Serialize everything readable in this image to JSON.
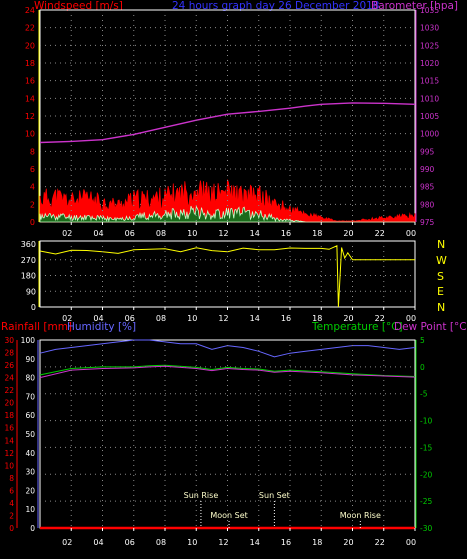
{
  "header": {
    "left": "Windspeed [m/s]",
    "center": "24 hours graph day  26 December 2018",
    "right": "Barometer [hpa]"
  },
  "middle": {
    "directions": [
      "N",
      "W",
      "S",
      "E",
      "N"
    ]
  },
  "bottom_header": {
    "rainfall": "Rainfall [mm]",
    "humidity": "Humidity [%]",
    "temperature": "Temperature [°C]",
    "dewpoint": "Dew Point [°C]"
  },
  "events": {
    "sun_rise": "Sun Rise",
    "sun_set": "Sun Set",
    "moon_set": "Moon Set",
    "moon_rise": "Moon Rise"
  },
  "colors": {
    "wind_gust": "#ff0000",
    "wind_avg": "#c8ffc8",
    "barometer": "#cc33cc",
    "direction": "#ffff00",
    "humidity": "#6666ff",
    "temperature": "#00cc00",
    "dewpoint": "#cc33cc",
    "rain": "#ff0000",
    "axis_yellow": "#ffff00",
    "grid": "#888888"
  },
  "chart_data": [
    {
      "type": "line",
      "title": "24 hours graph day  26 December 2018",
      "x_ticks": [
        "02",
        "04",
        "06",
        "08",
        "10",
        "12",
        "14",
        "16",
        "18",
        "20",
        "22",
        "00"
      ],
      "y_left_label": "Windspeed [m/s]",
      "y_left_ticks": [
        0,
        2,
        4,
        6,
        8,
        10,
        12,
        14,
        16,
        18,
        20,
        22,
        24
      ],
      "y_left_range": [
        0,
        24
      ],
      "y_right_label": "Barometer [hpa]",
      "y_right_ticks": [
        975,
        980,
        985,
        990,
        995,
        1000,
        1005,
        1010,
        1015,
        1020,
        1025,
        1030,
        1035
      ],
      "y_right_range": [
        975,
        1035
      ],
      "series": [
        {
          "name": "Barometer",
          "axis": "right",
          "x": [
            0,
            2,
            4,
            6,
            8,
            10,
            12,
            14,
            16,
            17,
            18,
            20,
            22,
            24
          ],
          "values": [
            997.5,
            997.8,
            998.3,
            999.8,
            1001.8,
            1003.8,
            1005.5,
            1006.3,
            1007.2,
            1007.8,
            1008.3,
            1008.7,
            1008.6,
            1008.3
          ]
        },
        {
          "name": "Wind gust",
          "axis": "left",
          "x": [
            0,
            1,
            2,
            3,
            4,
            5,
            6,
            7,
            8,
            9,
            10,
            11,
            12,
            13,
            14,
            15,
            16,
            17,
            18,
            19,
            20,
            21,
            22,
            23,
            24
          ],
          "values": [
            2.6,
            2.8,
            2.4,
            2.6,
            2.2,
            1.9,
            2.5,
            2.6,
            2.8,
            3.2,
            3.6,
            3.0,
            3.4,
            2.8,
            3.0,
            2.0,
            1.4,
            0.9,
            0.5,
            0.1,
            0.1,
            0.3,
            0.5,
            0.6,
            0.7
          ]
        },
        {
          "name": "Wind average",
          "axis": "left",
          "x": [
            0,
            1,
            2,
            3,
            4,
            5,
            6,
            7,
            8,
            9,
            10,
            11,
            12,
            13,
            14,
            15,
            16,
            17,
            18,
            19,
            20,
            21,
            22,
            23,
            24
          ],
          "values": [
            0.6,
            0.7,
            0.5,
            0.6,
            0.4,
            0.3,
            0.6,
            0.7,
            0.8,
            1.0,
            1.2,
            0.8,
            1.1,
            1.0,
            0.9,
            0.4,
            0.2,
            0,
            0,
            0,
            0,
            0,
            0,
            0,
            0
          ]
        }
      ]
    },
    {
      "type": "line",
      "x_ticks": [
        "02",
        "04",
        "06",
        "08",
        "10",
        "12",
        "14",
        "16",
        "18",
        "20",
        "22",
        "00"
      ],
      "y_ticks": [
        0,
        90,
        180,
        270,
        360
      ],
      "y_range": [
        0,
        360
      ],
      "series": [
        {
          "name": "Wind direction",
          "x": [
            0,
            1,
            2,
            3,
            4,
            5,
            6,
            7,
            8,
            9,
            10,
            11,
            12,
            13,
            14,
            15,
            16,
            17,
            18,
            18.5,
            19.0,
            19.1,
            19.3,
            19.5,
            19.7,
            20,
            21,
            22,
            23,
            24
          ],
          "values": [
            320,
            310,
            330,
            320,
            325,
            315,
            320,
            330,
            325,
            320,
            330,
            325,
            320,
            330,
            325,
            330,
            335,
            340,
            335,
            330,
            350,
            0,
            340,
            280,
            310,
            270,
            270,
            270,
            270,
            270
          ]
        }
      ]
    },
    {
      "type": "line",
      "x_ticks": [
        "02",
        "04",
        "06",
        "08",
        "10",
        "12",
        "14",
        "16",
        "18",
        "20",
        "22",
        "00"
      ],
      "y_left_outer_label": "Rainfall [mm]",
      "y_left_outer_ticks": [
        0,
        2,
        4,
        6,
        8,
        10,
        12,
        14,
        16,
        18,
        20,
        22,
        24,
        26,
        28,
        30
      ],
      "y_left_outer_range": [
        0,
        30
      ],
      "y_left_inner_label": "Humidity [%]",
      "y_left_inner_ticks": [
        0,
        10,
        20,
        30,
        40,
        50,
        60,
        70,
        80,
        90,
        100
      ],
      "y_left_inner_range": [
        0,
        100
      ],
      "y_right_label": "Temperature [°C]",
      "y_right_ticks": [
        -30,
        -25,
        -20,
        -15,
        -10,
        -5,
        0,
        5
      ],
      "y_right_range": [
        -30,
        5
      ],
      "series": [
        {
          "name": "Humidity",
          "axis": "left_inner",
          "x": [
            0,
            1,
            2,
            3,
            4,
            5,
            6,
            7,
            8,
            9,
            10,
            11,
            12,
            13,
            14,
            15,
            16,
            17,
            18,
            19,
            20,
            21,
            22,
            23,
            24
          ],
          "values": [
            93,
            95,
            96,
            97,
            98,
            99,
            100,
            100,
            99,
            98,
            98,
            95,
            97,
            96,
            94,
            91,
            93,
            94,
            95,
            96,
            97,
            97,
            96,
            95,
            96
          ]
        },
        {
          "name": "Temperature",
          "axis": "right",
          "x": [
            0,
            2,
            4,
            6,
            7,
            8,
            10,
            11,
            12,
            13,
            14,
            15,
            16,
            18,
            20,
            22,
            24
          ],
          "values": [
            -1.5,
            -0.3,
            0,
            0,
            0.2,
            0.3,
            -0.1,
            -0.5,
            -0.1,
            -0.3,
            -0.4,
            -0.8,
            -0.6,
            -0.9,
            -1.3,
            -1.6,
            -1.8
          ]
        },
        {
          "name": "Dew Point",
          "axis": "right",
          "x": [
            0,
            2,
            4,
            6,
            7,
            8,
            10,
            11,
            12,
            13,
            14,
            15,
            16,
            18,
            20,
            22,
            24
          ],
          "values": [
            -2.0,
            -0.6,
            -0.3,
            -0.2,
            0,
            0.1,
            -0.3,
            -0.7,
            -0.3,
            -0.5,
            -0.6,
            -1.0,
            -0.8,
            -1.1,
            -1.5,
            -1.7,
            -1.9
          ]
        },
        {
          "name": "Rainfall",
          "axis": "left_outer",
          "x": [
            0,
            24
          ],
          "values": [
            0,
            0
          ]
        }
      ],
      "events": [
        {
          "label": "Sun Rise",
          "hour": 10.3
        },
        {
          "label": "Moon Set",
          "hour": 12.1
        },
        {
          "label": "Sun Set",
          "hour": 15.0
        },
        {
          "label": "Moon Rise",
          "hour": 20.5
        }
      ]
    }
  ]
}
